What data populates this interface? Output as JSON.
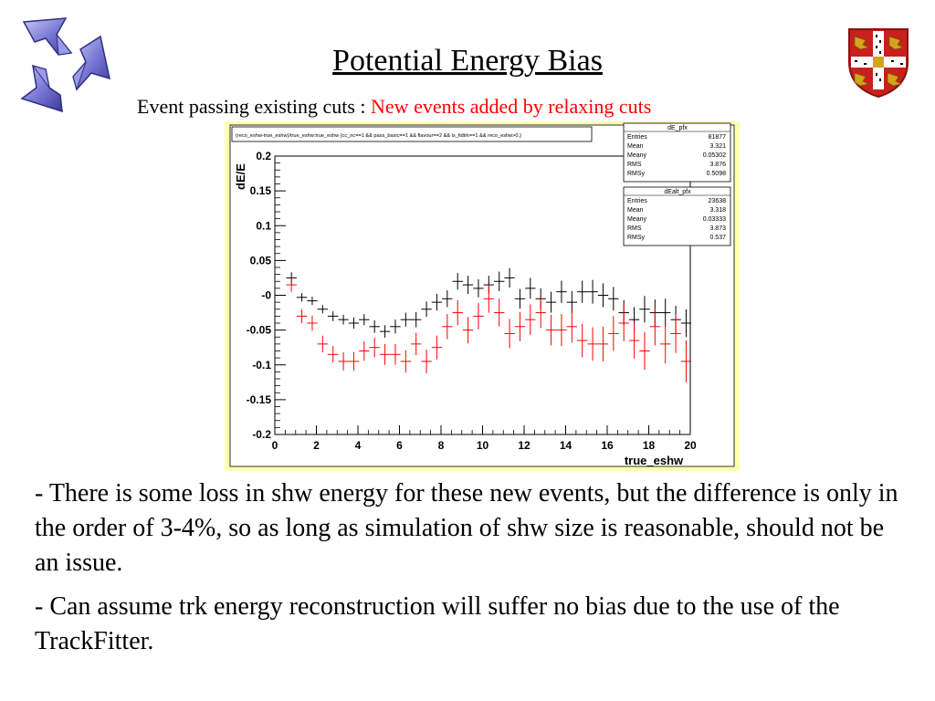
{
  "slide": {
    "title": "Potential Energy Bias",
    "subtitle_black": "Event passing existing cuts : ",
    "subtitle_red": "New events added by relaxing cuts",
    "bullets": [
      "- There is some loss in shw energy for these new events, but the difference is only in the order of 3-4%, so as long as simulation of shw size is reasonable, should not be an issue.",
      "- Can assume trk energy reconstruction will suffer no bias due to the use of the TrackFitter."
    ]
  },
  "logos": {
    "left": "three-arrow-logo",
    "right": "university-crest"
  },
  "chart_data": {
    "type": "scatter",
    "title": "(reco_eshw-true_eshw)/true_eshw:true_eshw {cc_nc==1 && pass_basic==1 && flavour==2 && is_fidtrk==1 && reco_eshw>0.}",
    "xlabel": "true_eshw",
    "ylabel": "dE/E",
    "xlim": [
      0,
      20
    ],
    "ylim": [
      -0.2,
      0.2
    ],
    "x_ticks": [
      "0",
      "2",
      "4",
      "6",
      "8",
      "10",
      "12",
      "14",
      "16",
      "18",
      "20"
    ],
    "y_ticks": [
      "-0.2",
      "-0.15",
      "-0.1",
      "-0.05",
      "-0",
      "0.05",
      "0.1",
      "0.15",
      "0.2"
    ],
    "grid": false,
    "colors": {
      "frame_bg": "#ffffb0",
      "plot_bg": "#ffffff",
      "black_series": "#000000",
      "red_series": "#ff0000"
    },
    "stats_boxes": [
      {
        "name": "dE_pfx",
        "rows": [
          [
            "Entries",
            "81877"
          ],
          [
            "Mean",
            "3.321"
          ],
          [
            "Meany",
            "0.05302"
          ],
          [
            "RMS",
            "3.876"
          ],
          [
            "RMSy",
            "0.5098"
          ]
        ]
      },
      {
        "name": "dEalt_pfx",
        "rows": [
          [
            "Entries",
            "23638"
          ],
          [
            "Mean",
            "3.318"
          ],
          [
            "Meany",
            "0.03333"
          ],
          [
            "RMS",
            "3.873"
          ],
          [
            "RMSy",
            "0.537"
          ]
        ]
      }
    ],
    "series": [
      {
        "name": "dE_pfx",
        "color": "#000000",
        "points": [
          [
            0.8,
            0.025,
            0.008
          ],
          [
            1.3,
            -0.003,
            0.006
          ],
          [
            1.8,
            -0.008,
            0.006
          ],
          [
            2.3,
            -0.02,
            0.006
          ],
          [
            2.8,
            -0.03,
            0.007
          ],
          [
            3.3,
            -0.035,
            0.007
          ],
          [
            3.8,
            -0.04,
            0.008
          ],
          [
            4.3,
            -0.035,
            0.008
          ],
          [
            4.8,
            -0.045,
            0.009
          ],
          [
            5.3,
            -0.052,
            0.009
          ],
          [
            5.8,
            -0.045,
            0.01
          ],
          [
            6.3,
            -0.035,
            0.01
          ],
          [
            6.8,
            -0.035,
            0.011
          ],
          [
            7.3,
            -0.02,
            0.011
          ],
          [
            7.8,
            -0.01,
            0.012
          ],
          [
            8.3,
            -0.005,
            0.012
          ],
          [
            8.8,
            0.02,
            0.012
          ],
          [
            9.3,
            0.015,
            0.013
          ],
          [
            9.8,
            0.01,
            0.013
          ],
          [
            10.3,
            0.015,
            0.013
          ],
          [
            10.8,
            0.02,
            0.014
          ],
          [
            11.3,
            0.025,
            0.014
          ],
          [
            11.8,
            -0.005,
            0.014
          ],
          [
            12.3,
            0.01,
            0.015
          ],
          [
            12.8,
            -0.005,
            0.015
          ],
          [
            13.3,
            -0.01,
            0.015
          ],
          [
            13.8,
            0.005,
            0.016
          ],
          [
            14.3,
            -0.01,
            0.016
          ],
          [
            14.8,
            0.005,
            0.016
          ],
          [
            15.3,
            0.005,
            0.017
          ],
          [
            15.8,
            0.0,
            0.017
          ],
          [
            16.3,
            -0.005,
            0.017
          ],
          [
            16.8,
            -0.025,
            0.018
          ],
          [
            17.3,
            -0.035,
            0.018
          ],
          [
            17.8,
            -0.02,
            0.019
          ],
          [
            18.3,
            -0.025,
            0.019
          ],
          [
            18.8,
            -0.025,
            0.02
          ],
          [
            19.3,
            -0.035,
            0.02
          ],
          [
            19.8,
            -0.04,
            0.02
          ]
        ]
      },
      {
        "name": "dEalt_pfx",
        "color": "#ff0000",
        "points": [
          [
            0.8,
            0.015,
            0.01
          ],
          [
            1.3,
            -0.03,
            0.01
          ],
          [
            1.8,
            -0.04,
            0.011
          ],
          [
            2.3,
            -0.07,
            0.012
          ],
          [
            2.8,
            -0.085,
            0.012
          ],
          [
            3.3,
            -0.095,
            0.013
          ],
          [
            3.8,
            -0.095,
            0.013
          ],
          [
            4.3,
            -0.08,
            0.014
          ],
          [
            4.8,
            -0.075,
            0.014
          ],
          [
            5.3,
            -0.085,
            0.015
          ],
          [
            5.8,
            -0.085,
            0.015
          ],
          [
            6.3,
            -0.095,
            0.016
          ],
          [
            6.8,
            -0.07,
            0.016
          ],
          [
            7.3,
            -0.095,
            0.017
          ],
          [
            7.8,
            -0.075,
            0.017
          ],
          [
            8.3,
            -0.045,
            0.018
          ],
          [
            8.8,
            -0.025,
            0.018
          ],
          [
            9.3,
            -0.05,
            0.019
          ],
          [
            9.8,
            -0.03,
            0.019
          ],
          [
            10.3,
            -0.005,
            0.02
          ],
          [
            10.8,
            -0.025,
            0.02
          ],
          [
            11.3,
            -0.055,
            0.021
          ],
          [
            11.8,
            -0.045,
            0.021
          ],
          [
            12.3,
            -0.035,
            0.022
          ],
          [
            12.8,
            -0.025,
            0.022
          ],
          [
            13.3,
            -0.05,
            0.022
          ],
          [
            13.8,
            -0.05,
            0.023
          ],
          [
            14.3,
            -0.045,
            0.023
          ],
          [
            14.8,
            -0.065,
            0.024
          ],
          [
            15.3,
            -0.07,
            0.024
          ],
          [
            15.8,
            -0.07,
            0.025
          ],
          [
            16.3,
            -0.055,
            0.025
          ],
          [
            16.8,
            -0.04,
            0.026
          ],
          [
            17.3,
            -0.065,
            0.026
          ],
          [
            17.8,
            -0.08,
            0.027
          ],
          [
            18.3,
            -0.045,
            0.027
          ],
          [
            18.8,
            -0.07,
            0.028
          ],
          [
            19.3,
            -0.055,
            0.028
          ],
          [
            19.8,
            -0.095,
            0.03
          ]
        ]
      }
    ]
  }
}
